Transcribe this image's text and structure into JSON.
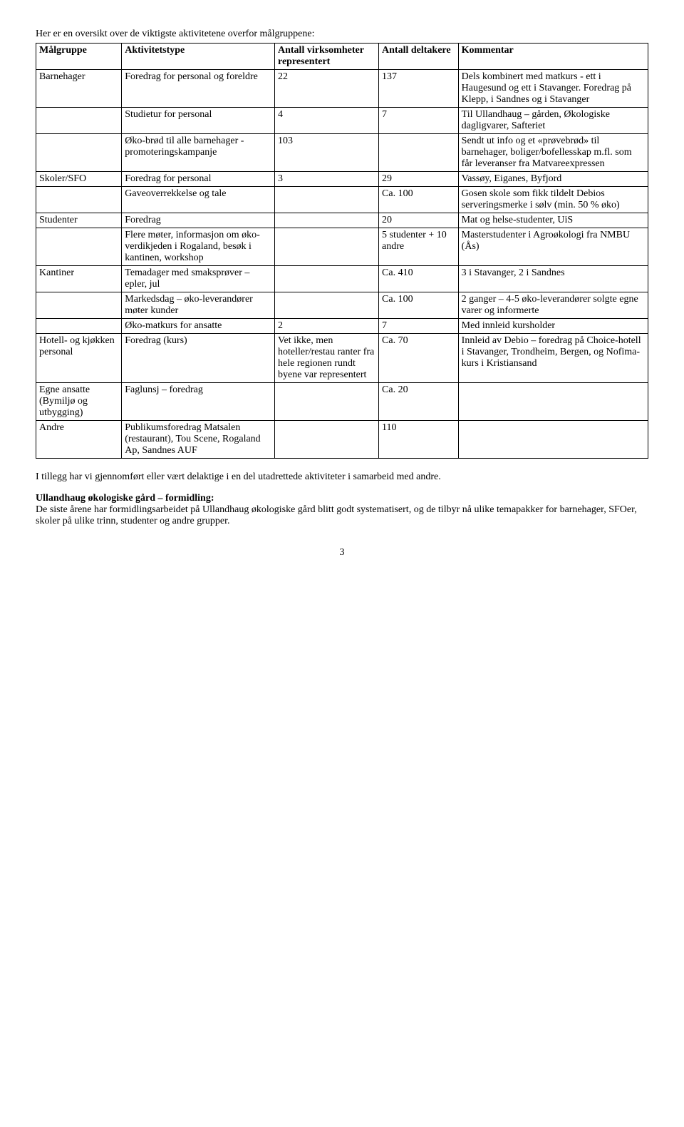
{
  "intro": "Her er en oversikt over de viktigste aktivitetene overfor målgruppene:",
  "headers": {
    "c1": "Målgruppe",
    "c2": "Aktivitetstype",
    "c3": "Antall virksomheter representert",
    "c4": "Antall deltakere",
    "c5": "Kommentar"
  },
  "rows": [
    {
      "c1": "Barnehager",
      "c2": "Foredrag for personal og foreldre",
      "c3": "22",
      "c4": "137",
      "c5": "Dels kombinert med matkurs - ett i Haugesund og ett i Stavanger. Foredrag på Klepp, i Sandnes og i Stavanger"
    },
    {
      "c1": "",
      "c2": "Studietur for personal",
      "c3": "4",
      "c4": "7",
      "c5": "Til Ullandhaug – gården, Økologiske dagligvarer, Safteriet"
    },
    {
      "c1": "",
      "c2": "Øko-brød til alle barnehager - promoteringskampanje",
      "c3": "103",
      "c4": "",
      "c5": "Sendt ut info og et «prøvebrød» til barnehager, boliger/bofellesskap m.fl. som får leveranser fra Matvareexpressen"
    },
    {
      "c1": "Skoler/SFO",
      "c2": "Foredrag for personal",
      "c3": "3",
      "c4": "29",
      "c5": "Vassøy, Eiganes, Byfjord"
    },
    {
      "c1": "",
      "c2": "Gaveoverrekkelse og tale",
      "c3": "",
      "c4": "Ca. 100",
      "c5": "Gosen skole som fikk tildelt Debios serveringsmerke i sølv (min. 50 % øko)"
    },
    {
      "c1": "Studenter",
      "c2": "Foredrag",
      "c3": "",
      "c4": "20",
      "c5": "Mat og helse-studenter, UiS"
    },
    {
      "c1": "",
      "c2": "Flere møter, informasjon om øko-verdikjeden i Rogaland, besøk i kantinen, workshop",
      "c3": "",
      "c4": "5 studenter + 10 andre",
      "c5": "Masterstudenter i Agroøkologi fra NMBU (Ås)"
    },
    {
      "c1": "Kantiner",
      "c2": "Temadager med smaksprøver – epler, jul",
      "c3": "",
      "c4": "Ca. 410",
      "c5": "3 i Stavanger, 2 i Sandnes"
    },
    {
      "c1": "",
      "c2": "Markedsdag – øko-leverandører møter kunder",
      "c3": "",
      "c4": "Ca. 100",
      "c5": "2 ganger – 4-5 øko-leverandører solgte egne varer og informerte"
    },
    {
      "c1": "",
      "c2": "Øko-matkurs for ansatte",
      "c3": "2",
      "c4": "7",
      "c5": "Med innleid kursholder"
    },
    {
      "c1": "Hotell- og kjøkken personal",
      "c2": "Foredrag (kurs)",
      "c3": "Vet ikke, men hoteller/restau ranter fra hele regionen rundt byene var representert",
      "c4": "Ca. 70",
      "c5": "Innleid av Debio – foredrag på Choice-hotell i Stavanger, Trondheim, Bergen, og Nofima-kurs i Kristiansand"
    },
    {
      "c1": "Egne ansatte (Bymiljø og utbygging)",
      "c2": "Faglunsj – foredrag",
      "c3": "",
      "c4": "Ca. 20",
      "c5": ""
    },
    {
      "c1": "Andre",
      "c2": "Publikumsforedrag Matsalen (restaurant), Tou Scene, Rogaland Ap, Sandnes AUF",
      "c3": "",
      "c4": "110",
      "c5": ""
    }
  ],
  "afterPara": "I tillegg har vi gjennomført eller vært delaktige i en del utadrettede aktiviteter i samarbeid med andre.",
  "section": {
    "heading": "Ullandhaug økologiske gård – formidling:",
    "body": "De siste årene har formidlingsarbeidet på Ullandhaug økologiske gård blitt godt systematisert, og de tilbyr nå ulike temapakker for barnehager, SFOer, skoler på ulike trinn, studenter og andre grupper."
  },
  "pageNumber": "3"
}
